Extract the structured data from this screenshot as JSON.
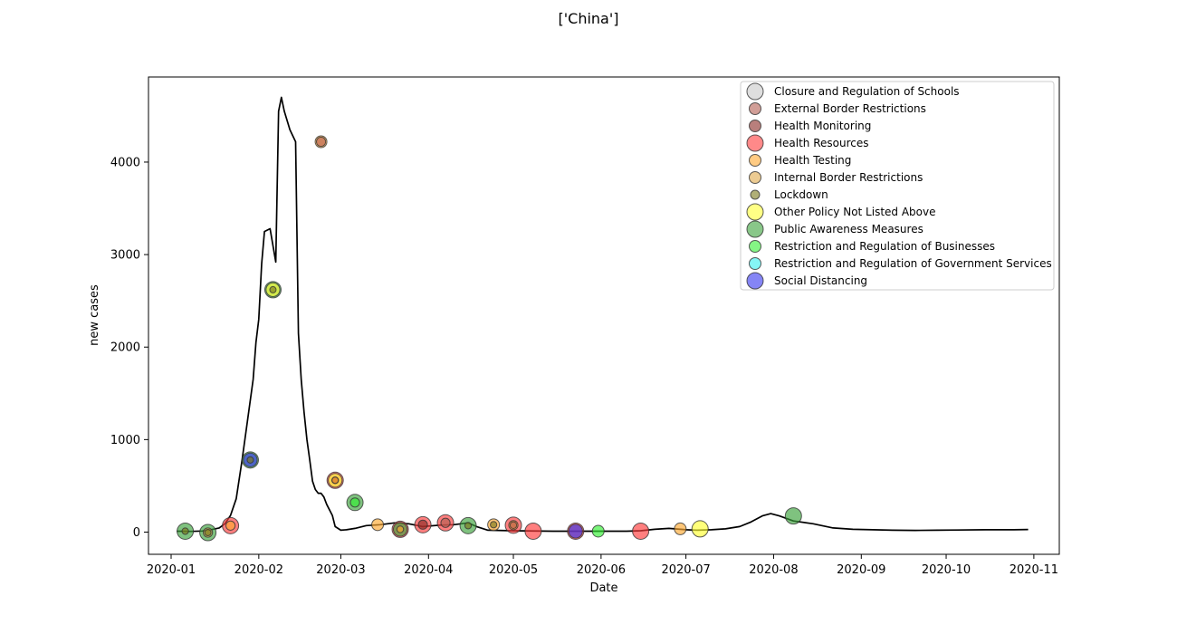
{
  "chart_data": {
    "type": "line",
    "title": "['China']",
    "xlabel": "Date",
    "ylabel": "new cases",
    "x_ticks": [
      "2020-01",
      "2020-02",
      "2020-03",
      "2020-04",
      "2020-05",
      "2020-06",
      "2020-07",
      "2020-08",
      "2020-09",
      "2020-10",
      "2020-11"
    ],
    "y_ticks": [
      0,
      1000,
      2000,
      3000,
      4000
    ],
    "xlim": [
      "2019-12-24",
      "2020-11-10"
    ],
    "ylim": [
      -240,
      4920
    ],
    "grid": false,
    "legend_position": "top-right",
    "line_color": "#000000",
    "series": [
      {
        "x": [
          "2020-01-03",
          "2020-01-08",
          "2020-01-12",
          "2020-01-15",
          "2020-01-18",
          "2020-01-20",
          "2020-01-22",
          "2020-01-24",
          "2020-01-26",
          "2020-01-28",
          "2020-01-30",
          "2020-01-31",
          "2020-02-01",
          "2020-02-02",
          "2020-02-03",
          "2020-02-05",
          "2020-02-07",
          "2020-02-08",
          "2020-02-09",
          "2020-02-10",
          "2020-02-11",
          "2020-02-12",
          "2020-02-14",
          "2020-02-15",
          "2020-02-16",
          "2020-02-17",
          "2020-02-18",
          "2020-02-19",
          "2020-02-20",
          "2020-02-21",
          "2020-02-22",
          "2020-02-23",
          "2020-02-24",
          "2020-02-25",
          "2020-02-27",
          "2020-02-28",
          "2020-03-01",
          "2020-03-03",
          "2020-03-06",
          "2020-03-10",
          "2020-03-15",
          "2020-03-20",
          "2020-03-25",
          "2020-03-30",
          "2020-04-05",
          "2020-04-10",
          "2020-04-15",
          "2020-04-18",
          "2020-04-20",
          "2020-04-22",
          "2020-05-01",
          "2020-05-15",
          "2020-06-01",
          "2020-06-10",
          "2020-06-15",
          "2020-06-20",
          "2020-06-25",
          "2020-07-01",
          "2020-07-05",
          "2020-07-10",
          "2020-07-15",
          "2020-07-20",
          "2020-07-24",
          "2020-07-28",
          "2020-07-31",
          "2020-08-03",
          "2020-08-08",
          "2020-08-15",
          "2020-08-22",
          "2020-08-29",
          "2020-09-05",
          "2020-09-12",
          "2020-09-20",
          "2020-09-28",
          "2020-10-05",
          "2020-10-15",
          "2020-10-25",
          "2020-10-30"
        ],
        "y": [
          10,
          8,
          12,
          25,
          45,
          90,
          180,
          360,
          760,
          1200,
          1650,
          2050,
          2300,
          2900,
          3250,
          3280,
          2920,
          4550,
          4700,
          4550,
          4450,
          4350,
          4220,
          2150,
          1650,
          1300,
          1000,
          780,
          550,
          460,
          420,
          420,
          380,
          300,
          180,
          60,
          20,
          25,
          40,
          70,
          80,
          100,
          90,
          60,
          75,
          80,
          100,
          60,
          40,
          20,
          15,
          10,
          10,
          10,
          15,
          30,
          40,
          25,
          20,
          25,
          35,
          60,
          110,
          175,
          200,
          175,
          120,
          90,
          45,
          30,
          25,
          20,
          18,
          20,
          22,
          25,
          25,
          28
        ]
      }
    ],
    "policy_markers": [
      {
        "date": "2020-01-06",
        "y": 10,
        "categories": [
          "Lockdown",
          "Public Awareness Measures"
        ]
      },
      {
        "date": "2020-01-14",
        "y": -5,
        "categories": [
          "Internal Border Restrictions",
          "Lockdown",
          "Public Awareness Measures"
        ]
      },
      {
        "date": "2020-01-22",
        "y": 70,
        "categories": [
          "Health Resources",
          "Health Testing"
        ]
      },
      {
        "date": "2020-01-29",
        "y": 780,
        "categories": [
          "Public Awareness Measures",
          "Lockdown",
          "Social Distancing"
        ]
      },
      {
        "date": "2020-02-06",
        "y": 2620,
        "categories": [
          "Public Awareness Measures",
          "Lockdown",
          "Other Policy Not Listed Above"
        ]
      },
      {
        "date": "2020-02-23",
        "y": 4220,
        "categories": [
          "Health Testing",
          "External Border Restrictions"
        ]
      },
      {
        "date": "2020-02-28",
        "y": 560,
        "categories": [
          "Health Resources",
          "Health Monitoring",
          "Health Testing",
          "Other Policy Not Listed Above"
        ]
      },
      {
        "date": "2020-03-06",
        "y": 320,
        "categories": [
          "Public Awareness Measures",
          "Restriction and Regulation of Businesses"
        ]
      },
      {
        "date": "2020-03-14",
        "y": 80,
        "categories": [
          "Health Testing"
        ]
      },
      {
        "date": "2020-03-22",
        "y": 30,
        "categories": [
          "Health Resources",
          "Health Testing",
          "Public Awareness Measures"
        ]
      },
      {
        "date": "2020-03-30",
        "y": 80,
        "categories": [
          "Health Resources",
          "Health Monitoring"
        ]
      },
      {
        "date": "2020-04-07",
        "y": 100,
        "categories": [
          "Health Resources",
          "External Border Restrictions"
        ]
      },
      {
        "date": "2020-04-15",
        "y": 70,
        "categories": [
          "Public Awareness Measures",
          "Lockdown"
        ]
      },
      {
        "date": "2020-04-24",
        "y": 80,
        "categories": [
          "Health Testing",
          "Lockdown"
        ]
      },
      {
        "date": "2020-05-01",
        "y": 75,
        "categories": [
          "Health Resources",
          "Health Testing",
          "External Border Restrictions"
        ]
      },
      {
        "date": "2020-05-08",
        "y": 10,
        "categories": [
          "Health Resources"
        ]
      },
      {
        "date": "2020-05-23",
        "y": 10,
        "categories": [
          "Health Resources",
          "Social Distancing"
        ]
      },
      {
        "date": "2020-05-31",
        "y": 10,
        "categories": [
          "Restriction and Regulation of Businesses"
        ]
      },
      {
        "date": "2020-06-15",
        "y": 10,
        "categories": [
          "Health Resources"
        ]
      },
      {
        "date": "2020-06-29",
        "y": 35,
        "categories": [
          "Health Testing"
        ]
      },
      {
        "date": "2020-07-06",
        "y": 35,
        "categories": [
          "Other Policy Not Listed Above"
        ]
      },
      {
        "date": "2020-08-08",
        "y": 175,
        "categories": [
          "Public Awareness Measures"
        ]
      }
    ]
  },
  "legend": {
    "entries": [
      {
        "label": "Closure and Regulation of Schools",
        "color": "#c8c8c8",
        "size": "large"
      },
      {
        "label": "External Border Restrictions",
        "color": "#b25d52",
        "size": "medium"
      },
      {
        "label": "Health Monitoring",
        "color": "#8b2a24",
        "size": "medium"
      },
      {
        "label": "Health Resources",
        "color": "#ff3b3b",
        "size": "large"
      },
      {
        "label": "Health Testing",
        "color": "#ffa931",
        "size": "medium"
      },
      {
        "label": "Internal Border Restrictions",
        "color": "#e0a84a",
        "size": "medium"
      },
      {
        "label": "Lockdown",
        "color": "#7b7a1c",
        "size": "small"
      },
      {
        "label": "Other Policy Not Listed Above",
        "color": "#ffff33",
        "size": "large"
      },
      {
        "label": "Public Awareness Measures",
        "color": "#3aa13a",
        "size": "large"
      },
      {
        "label": "Restriction and Regulation of Businesses",
        "color": "#33ee33",
        "size": "medium"
      },
      {
        "label": "Restriction and Regulation of Government Services",
        "color": "#33eeee",
        "size": "medium"
      },
      {
        "label": "Social Distancing",
        "color": "#3333ee",
        "size": "large"
      }
    ]
  }
}
